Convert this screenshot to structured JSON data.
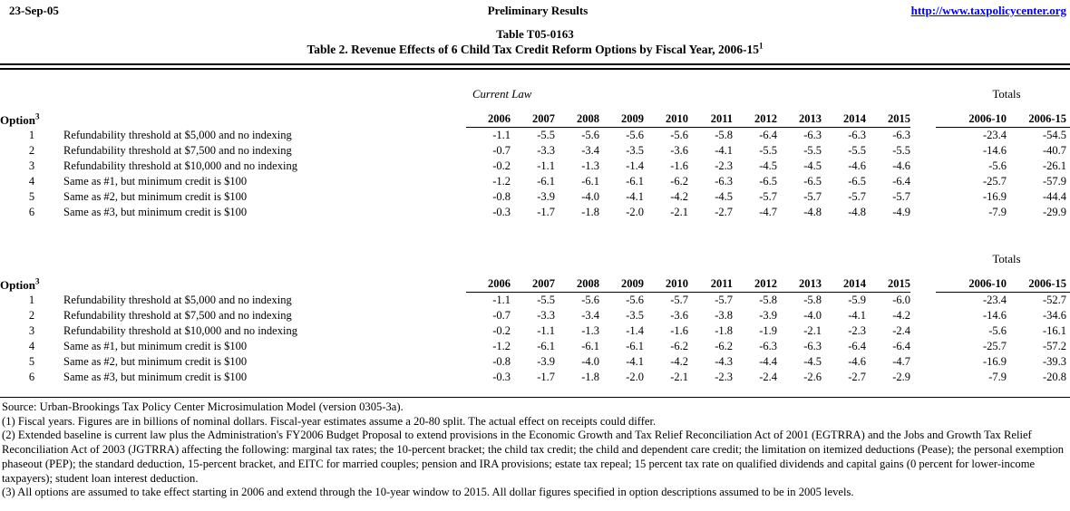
{
  "page_header": {
    "date": "23-Sep-05",
    "status": "Preliminary Results",
    "link": "http://www.taxpolicycenter.org"
  },
  "title": {
    "line1": "Table T05-0163",
    "line2": "Table 2.  Revenue Effects of 6 Child Tax Credit Reform Options by Fiscal Year, 2006-15",
    "line2_sup": "1"
  },
  "table": {
    "option_header": "Option",
    "option_header_sup": "3",
    "years": [
      "2006",
      "2007",
      "2008",
      "2009",
      "2010",
      "2011",
      "2012",
      "2013",
      "2014",
      "2015"
    ],
    "totals_label": "Totals",
    "totals_columns": [
      "2006-10",
      "2006-15"
    ],
    "sections": [
      {
        "label": "Current Law",
        "rows": [
          {
            "option": "1",
            "description": "Refundability threshold at $5,000 and no indexing",
            "values": [
              "-1.1",
              "-5.5",
              "-5.6",
              "-5.6",
              "-5.6",
              "-5.8",
              "-6.4",
              "-6.3",
              "-6.3",
              "-6.3"
            ],
            "totals": [
              "-23.4",
              "-54.5"
            ]
          },
          {
            "option": "2",
            "description": "Refundability threshold at $7,500 and no indexing",
            "values": [
              "-0.7",
              "-3.3",
              "-3.4",
              "-3.5",
              "-3.6",
              "-4.1",
              "-5.5",
              "-5.5",
              "-5.5",
              "-5.5"
            ],
            "totals": [
              "-14.6",
              "-40.7"
            ]
          },
          {
            "option": "3",
            "description": "Refundability threshold at $10,000 and no indexing",
            "values": [
              "-0.2",
              "-1.1",
              "-1.3",
              "-1.4",
              "-1.6",
              "-2.3",
              "-4.5",
              "-4.5",
              "-4.6",
              "-4.6"
            ],
            "totals": [
              "-5.6",
              "-26.1"
            ]
          },
          {
            "option": "4",
            "description": "Same as #1, but minimum credit is $100",
            "values": [
              "-1.2",
              "-6.1",
              "-6.1",
              "-6.1",
              "-6.2",
              "-6.3",
              "-6.5",
              "-6.5",
              "-6.5",
              "-6.4"
            ],
            "totals": [
              "-25.7",
              "-57.9"
            ]
          },
          {
            "option": "5",
            "description": "Same as #2, but minimum credit is $100",
            "values": [
              "-0.8",
              "-3.9",
              "-4.0",
              "-4.1",
              "-4.2",
              "-4.5",
              "-5.7",
              "-5.7",
              "-5.7",
              "-5.7"
            ],
            "totals": [
              "-16.9",
              "-44.4"
            ]
          },
          {
            "option": "6",
            "description": "Same as #3, but minimum credit is $100",
            "values": [
              "-0.3",
              "-1.7",
              "-1.8",
              "-2.0",
              "-2.1",
              "-2.7",
              "-4.7",
              "-4.8",
              "-4.8",
              "-4.9"
            ],
            "totals": [
              "-7.9",
              "-29.9"
            ]
          }
        ]
      },
      {
        "label": "",
        "rows": [
          {
            "option": "1",
            "description": "Refundability threshold at $5,000 and no indexing",
            "values": [
              "-1.1",
              "-5.5",
              "-5.6",
              "-5.6",
              "-5.7",
              "-5.7",
              "-5.8",
              "-5.8",
              "-5.9",
              "-6.0"
            ],
            "totals": [
              "-23.4",
              "-52.7"
            ]
          },
          {
            "option": "2",
            "description": "Refundability threshold at $7,500 and no indexing",
            "values": [
              "-0.7",
              "-3.3",
              "-3.4",
              "-3.5",
              "-3.6",
              "-3.8",
              "-3.9",
              "-4.0",
              "-4.1",
              "-4.2"
            ],
            "totals": [
              "-14.6",
              "-34.6"
            ]
          },
          {
            "option": "3",
            "description": "Refundability threshold at $10,000 and no indexing",
            "values": [
              "-0.2",
              "-1.1",
              "-1.3",
              "-1.4",
              "-1.6",
              "-1.8",
              "-1.9",
              "-2.1",
              "-2.3",
              "-2.4"
            ],
            "totals": [
              "-5.6",
              "-16.1"
            ]
          },
          {
            "option": "4",
            "description": "Same as #1, but minimum credit is $100",
            "values": [
              "-1.2",
              "-6.1",
              "-6.1",
              "-6.1",
              "-6.2",
              "-6.2",
              "-6.3",
              "-6.3",
              "-6.4",
              "-6.4"
            ],
            "totals": [
              "-25.7",
              "-57.2"
            ]
          },
          {
            "option": "5",
            "description": "Same as #2, but minimum credit is $100",
            "values": [
              "-0.8",
              "-3.9",
              "-4.0",
              "-4.1",
              "-4.2",
              "-4.3",
              "-4.4",
              "-4.5",
              "-4.6",
              "-4.7"
            ],
            "totals": [
              "-16.9",
              "-39.3"
            ]
          },
          {
            "option": "6",
            "description": "Same as #3, but minimum credit is $100",
            "values": [
              "-0.3",
              "-1.7",
              "-1.8",
              "-2.0",
              "-2.1",
              "-2.3",
              "-2.4",
              "-2.6",
              "-2.7",
              "-2.9"
            ],
            "totals": [
              "-7.9",
              "-20.8"
            ]
          }
        ]
      }
    ]
  },
  "footnotes": [
    "Source: Urban-Brookings Tax Policy Center Microsimulation Model (version 0305-3a).",
    "(1) Fiscal years. Figures are in billions of nominal dollars. Fiscal-year estimates assume a 20-80 split. The actual effect on receipts could differ.",
    "(2) Extended baseline is current law plus the Administration's FY2006 Budget Proposal to extend provisions in the Economic Growth and Tax Relief Reconciliation Act of 2001 (EGTRRA) and the Jobs and Growth Tax Relief Reconciliation Act of 2003 (JGTRRA) affecting the following: marginal tax rates; the 10-percent bracket; the child tax credit; the child and dependent care credit; the limitation on itemized deductions (Pease); the personal exemption phaseout (PEP); the standard deduction, 15-percent bracket, and EITC for married couples; pension and IRA provisions; estate tax repeal; 15 percent tax rate on qualified dividends and capital gains (0 percent for lower-income taxpayers); student loan interest deduction.",
    "(3) All options are assumed to take effect starting in 2006 and extend through the 10-year window to 2015.  All dollar figures specified in option descriptions assumed to be in 2005 levels."
  ],
  "colors": {
    "link": "#0000EE",
    "text": "#000000",
    "background": "#FFFFFF"
  }
}
